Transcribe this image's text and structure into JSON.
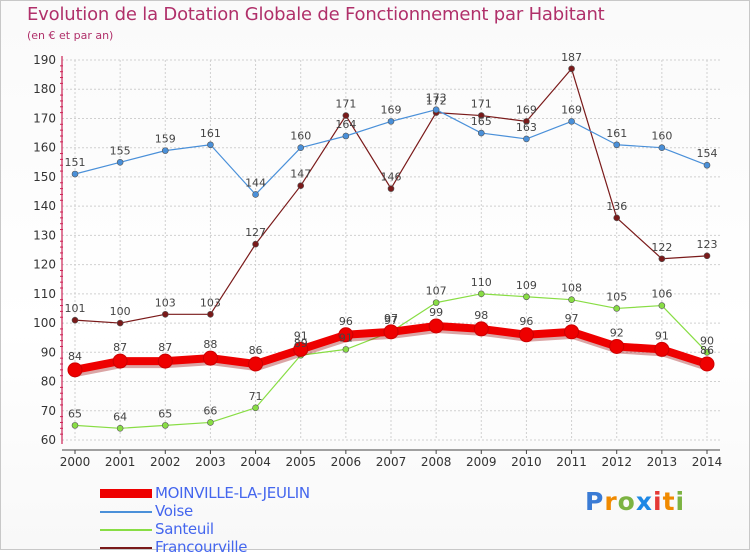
{
  "header": {
    "title": "Evolution de la Dotation Globale de Fonctionnement par Habitant",
    "subtitle": "(en € et par an)"
  },
  "logo": {
    "letters": [
      "P",
      "r",
      "o",
      "x",
      "i",
      "t",
      "i"
    ],
    "colors": [
      "#3a7bd5",
      "#f08a00",
      "#7cb342",
      "#1e88e5",
      "#e53935",
      "#f08a00",
      "#7cb342"
    ]
  },
  "colors": {
    "title": "#b0306a",
    "axis": "#cc2255",
    "grid": "#d0d0d0",
    "legend_text": "#4466ee"
  },
  "chart_data": {
    "type": "line",
    "title": "Evolution de la Dotation Globale de Fonctionnement par Habitant",
    "subtitle": "(en € et par an)",
    "xlabel": "",
    "ylabel": "",
    "ylim": [
      60,
      190
    ],
    "yticks": [
      60,
      70,
      80,
      90,
      100,
      110,
      120,
      130,
      140,
      150,
      160,
      170,
      180,
      190
    ],
    "categories": [
      "2000",
      "2001",
      "2002",
      "2003",
      "2004",
      "2005",
      "2006",
      "2007",
      "2008",
      "2009",
      "2010",
      "2011",
      "2012",
      "2013",
      "2014"
    ],
    "legend_position": "bottom-left",
    "series": [
      {
        "name": "MOINVILLE-LA-JEULIN",
        "color": "#ee0000",
        "width": 8,
        "marker": 7,
        "values": [
          84,
          87,
          87,
          88,
          86,
          91,
          96,
          97,
          99,
          98,
          96,
          97,
          92,
          91,
          86
        ],
        "labels": [
          "84",
          "87",
          "87",
          "88",
          "86",
          "91",
          "96",
          "97",
          "99",
          "98",
          "96",
          "97",
          "92",
          "91",
          "86"
        ]
      },
      {
        "name": "Voise",
        "color": "#4a90d9",
        "width": 1.2,
        "marker": 3,
        "values": [
          151,
          155,
          159,
          161,
          144,
          160,
          164,
          169,
          173,
          165,
          163,
          169,
          161,
          160,
          154
        ],
        "labels": [
          "151",
          "155",
          "159",
          "161",
          "144",
          "160",
          "164",
          "169",
          "173",
          "165",
          "163",
          "169",
          "161",
          "160",
          "154"
        ]
      },
      {
        "name": "Santeuil",
        "color": "#88dd44",
        "width": 1.2,
        "marker": 3,
        "values": [
          65,
          64,
          65,
          66,
          71,
          89,
          91,
          97,
          107,
          110,
          109,
          108,
          105,
          106,
          90
        ],
        "labels": [
          "65",
          "64",
          "65",
          "66",
          "71",
          "89",
          "91",
          "97",
          "107",
          "110",
          "109",
          "108",
          "105",
          "106",
          "90"
        ]
      },
      {
        "name": "Francourville",
        "color": "#7a1a1a",
        "width": 1.2,
        "marker": 3,
        "values": [
          101,
          100,
          103,
          103,
          127,
          147,
          171,
          146,
          172,
          171,
          169,
          187,
          136,
          122,
          123
        ],
        "labels": [
          "101",
          "100",
          "103",
          "103",
          "127",
          "147",
          "171",
          "146",
          "172",
          "171",
          "169",
          "187",
          "136",
          "122",
          "123"
        ]
      }
    ]
  }
}
